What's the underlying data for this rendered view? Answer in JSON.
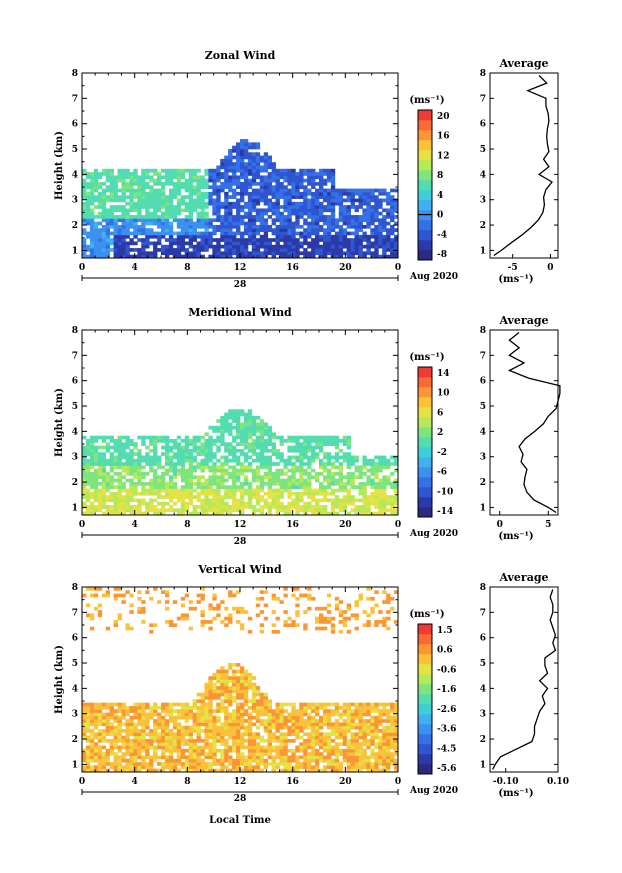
{
  "x_label": "Local Time",
  "day_label": "28",
  "month_label": "Aug 2020",
  "unit_label": "(ms⁻¹)",
  "panels": [
    {
      "title": "Zonal Wind",
      "avg_title": "Average",
      "y_label": "Height (km)",
      "cbar_ticks": [
        "20",
        "16",
        "12",
        "8",
        "4",
        "0",
        "-4",
        "-8"
      ],
      "cbar_zero": 0,
      "cbar_range": [
        -10,
        22
      ],
      "cbar_colors": [
        "#2a2a80",
        "#2b3aa8",
        "#2f55d0",
        "#3470e6",
        "#3c90f0",
        "#3fb2ee",
        "#3fcfd8",
        "#52dcb0",
        "#7ee47e",
        "#b6e858",
        "#e4e246",
        "#fac23a",
        "#fb9636",
        "#f86a36",
        "#f03a36"
      ],
      "avg_xticks": [
        "-5",
        "0"
      ]
    },
    {
      "title": "Meridional Wind",
      "avg_title": "Average",
      "y_label": "Height (km)",
      "cbar_ticks": [
        "14",
        "10",
        "6",
        "2",
        "-2",
        "-6",
        "-10",
        "-14"
      ],
      "cbar_zero": 0,
      "cbar_range": [
        -16,
        16
      ],
      "cbar_colors": [
        "#2a2a80",
        "#2b3aa8",
        "#2f55d0",
        "#3470e6",
        "#3c90f0",
        "#3fb2ee",
        "#3fcfd8",
        "#52dcb0",
        "#7ee47e",
        "#b6e858",
        "#e4e246",
        "#fac23a",
        "#fb9636",
        "#f86a36",
        "#f03a36"
      ],
      "avg_xticks": [
        "0",
        "5"
      ]
    },
    {
      "title": "Vertical Wind",
      "avg_title": "Average",
      "y_label": "Height (km)",
      "cbar_ticks": [
        "1.5",
        "0.6",
        "-0.6",
        "-1.6",
        "-2.6",
        "-3.6",
        "-4.5",
        "-5.6"
      ],
      "cbar_zero": null,
      "cbar_range": [
        -6,
        2
      ],
      "cbar_colors": [
        "#2a2a80",
        "#2b3aa8",
        "#2f55d0",
        "#3470e6",
        "#3c90f0",
        "#3fb2ee",
        "#3fcfd8",
        "#52dcb0",
        "#7ee47e",
        "#b6e858",
        "#e4e246",
        "#fac23a",
        "#fb9636",
        "#f86a36",
        "#f03a36"
      ],
      "avg_xticks": [
        "-0.10",
        "0.10"
      ]
    }
  ],
  "chart_data": [
    {
      "type": "heatmap",
      "title": "Zonal Wind",
      "xlabel": "",
      "ylabel": "Height (km)",
      "xlim": [
        0,
        24
      ],
      "ylim": [
        0.7,
        8
      ],
      "x_ticks": [
        "0",
        "4",
        "8",
        "12",
        "16",
        "20",
        "0"
      ],
      "y_ticks": [
        "1",
        "2",
        "3",
        "4",
        "5",
        "6",
        "7",
        "8"
      ],
      "colorbar": {
        "label": "(ms⁻¹)",
        "ticks": [
          "20",
          "16",
          "12",
          "8",
          "4",
          "0",
          "-4",
          "-8"
        ]
      },
      "average_profile": {
        "title": "Average",
        "xlabel": "(ms⁻¹)",
        "xlim": [
          -8,
          1
        ],
        "height_km": [
          0.8,
          1.0,
          1.3,
          1.6,
          1.9,
          2.2,
          2.5,
          2.8,
          3.1,
          3.4,
          3.7,
          4.0,
          4.3,
          4.6,
          4.9,
          5.2,
          5.5,
          5.8,
          6.1,
          6.4,
          6.7,
          7.0,
          7.3,
          7.6,
          7.9
        ],
        "values": [
          -7.5,
          -6.5,
          -5.2,
          -3.8,
          -2.6,
          -1.6,
          -1.0,
          -0.8,
          -0.9,
          -0.6,
          0.2,
          -1.5,
          -0.2,
          -0.9,
          -0.2,
          -0.4,
          -0.5,
          -0.4,
          -0.2,
          -0.3,
          -0.6,
          -0.6,
          -3.0,
          -0.5,
          -1.5
        ]
      }
    },
    {
      "type": "heatmap",
      "title": "Meridional Wind",
      "xlabel": "",
      "ylabel": "Height (km)",
      "xlim": [
        0,
        24
      ],
      "ylim": [
        0.7,
        8
      ],
      "x_ticks": [
        "0",
        "4",
        "8",
        "12",
        "16",
        "20",
        "0"
      ],
      "y_ticks": [
        "1",
        "2",
        "3",
        "4",
        "5",
        "6",
        "7",
        "8"
      ],
      "colorbar": {
        "label": "(ms⁻¹)",
        "ticks": [
          "14",
          "10",
          "6",
          "2",
          "-2",
          "-6",
          "-10",
          "-14"
        ]
      },
      "average_profile": {
        "title": "Average",
        "xlabel": "(ms⁻¹)",
        "xlim": [
          -1,
          6
        ],
        "height_km": [
          0.8,
          1.0,
          1.3,
          1.6,
          1.9,
          2.2,
          2.5,
          2.8,
          3.1,
          3.4,
          3.7,
          4.0,
          4.3,
          4.6,
          4.9,
          5.2,
          5.5,
          5.8,
          6.1,
          6.4,
          6.7,
          7.0,
          7.3,
          7.6,
          7.9
        ],
        "values": [
          5.8,
          5.0,
          3.5,
          2.8,
          2.5,
          2.6,
          2.8,
          2.2,
          2.4,
          2.0,
          2.6,
          3.6,
          4.5,
          5.0,
          5.8,
          6.0,
          6.2,
          6.2,
          3.0,
          1.0,
          2.5,
          1.0,
          2.0,
          1.0,
          2.0
        ]
      }
    },
    {
      "type": "heatmap",
      "title": "Vertical Wind",
      "xlabel": "Local Time",
      "ylabel": "Height (km)",
      "xlim": [
        0,
        24
      ],
      "ylim": [
        0.7,
        8
      ],
      "x_ticks": [
        "0",
        "4",
        "8",
        "12",
        "16",
        "20",
        "0"
      ],
      "y_ticks": [
        "1",
        "2",
        "3",
        "4",
        "5",
        "6",
        "7",
        "8"
      ],
      "colorbar": {
        "label": "(ms⁻¹)",
        "ticks": [
          "1.5",
          "0.6",
          "-0.6",
          "-1.6",
          "-2.6",
          "-3.6",
          "-4.5",
          "-5.6"
        ]
      },
      "average_profile": {
        "title": "Average",
        "xlabel": "(ms⁻¹)",
        "xlim": [
          -0.16,
          0.1
        ],
        "height_km": [
          0.8,
          1.0,
          1.3,
          1.6,
          1.9,
          2.2,
          2.5,
          2.8,
          3.1,
          3.4,
          3.7,
          4.0,
          4.3,
          4.6,
          4.9,
          5.2,
          5.5,
          5.8,
          6.1,
          6.4,
          6.7,
          7.0,
          7.3,
          7.6,
          7.9
        ],
        "values": [
          -0.15,
          -0.14,
          -0.12,
          -0.06,
          0.0,
          0.01,
          0.01,
          0.02,
          0.03,
          0.05,
          0.04,
          0.06,
          0.03,
          0.06,
          0.05,
          0.05,
          0.09,
          0.08,
          0.09,
          0.08,
          0.07,
          0.08,
          0.08,
          0.07,
          0.08
        ]
      }
    }
  ]
}
